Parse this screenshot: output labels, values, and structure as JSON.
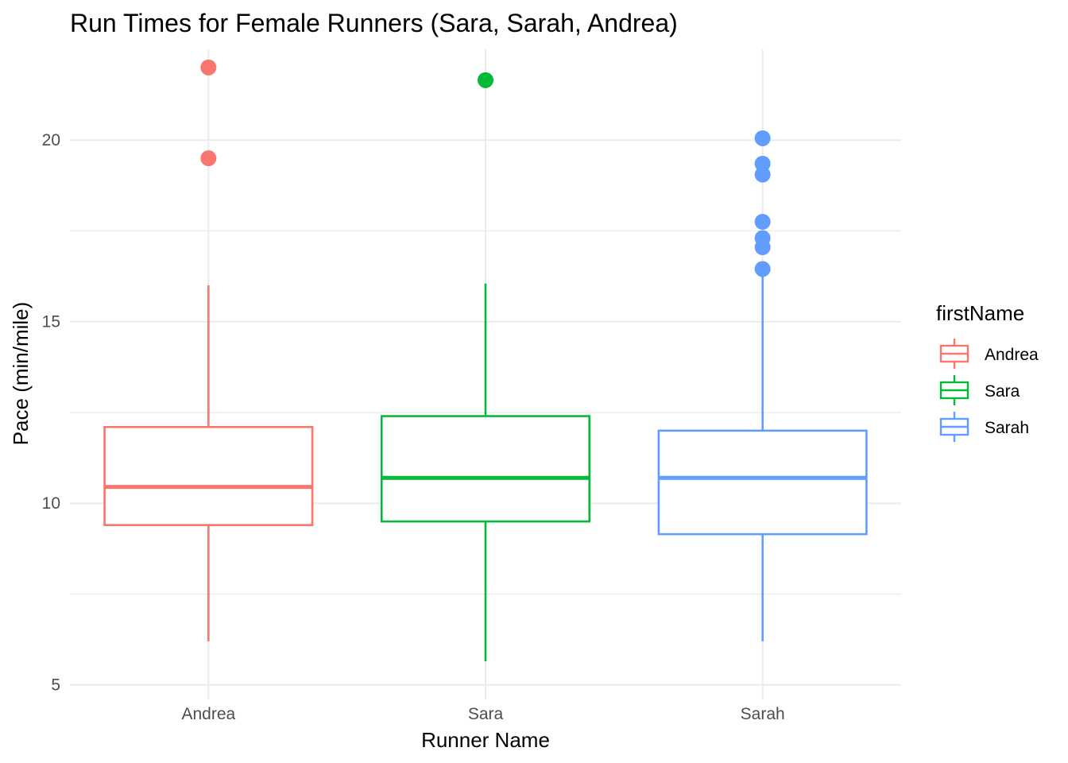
{
  "chart_data": {
    "type": "box",
    "title": "Run Times for Female Runners (Sara, Sarah, Andrea)",
    "xlabel": "Runner Name",
    "ylabel": "Pace (min/mile)",
    "ylim": [
      4.6,
      22.5
    ],
    "yticks": [
      5,
      10,
      15,
      20
    ],
    "categories": [
      "Andrea",
      "Sara",
      "Sarah"
    ],
    "grid": true,
    "legend": {
      "title": "firstName",
      "position": "right",
      "entries": [
        "Andrea",
        "Sara",
        "Sarah"
      ]
    },
    "series": [
      {
        "name": "Andrea",
        "color": "#F8766D",
        "whisker_low": 6.2,
        "q1": 9.4,
        "median": 10.45,
        "q3": 12.1,
        "whisker_high": 16.0,
        "outliers": [
          19.5,
          22.0
        ]
      },
      {
        "name": "Sara",
        "color": "#00BA38",
        "whisker_low": 5.65,
        "q1": 9.5,
        "median": 10.7,
        "q3": 12.4,
        "whisker_high": 16.05,
        "outliers": [
          21.65
        ]
      },
      {
        "name": "Sarah",
        "color": "#619CFF",
        "whisker_low": 6.2,
        "q1": 9.15,
        "median": 10.7,
        "q3": 12.0,
        "whisker_high": 16.3,
        "outliers": [
          16.45,
          17.05,
          17.3,
          17.75,
          19.05,
          19.35,
          20.05
        ]
      }
    ]
  }
}
